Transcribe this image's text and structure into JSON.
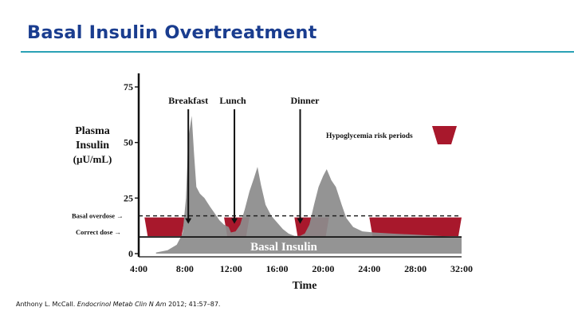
{
  "slide": {
    "title": "Basal Insulin Overtreatment",
    "citation_author": "Anthony L. McCall.",
    "citation_journal": "Endocrinol Metab Clin N Am",
    "citation_rest": "2012; 41:57–87."
  },
  "chart_data": {
    "type": "area",
    "ylabel_lines": [
      "Plasma",
      "Insulin",
      "(µU/mL)"
    ],
    "xlabel": "Time",
    "x_unit": "hours",
    "x_ticks": [
      {
        "value": 4,
        "label": "4:00"
      },
      {
        "value": 8,
        "label": "8:00"
      },
      {
        "value": 12,
        "label": "12:00"
      },
      {
        "value": 16,
        "label": "16:00"
      },
      {
        "value": 20,
        "label": "20:00"
      },
      {
        "value": 24,
        "label": "24:00"
      },
      {
        "value": 28,
        "label": "28:00"
      },
      {
        "value": 32,
        "label": "32:00"
      }
    ],
    "y_ticks": [
      0,
      25,
      50,
      75
    ],
    "xlim": [
      4,
      32
    ],
    "ylim": [
      0,
      75
    ],
    "meals": [
      {
        "label": "Breakfast",
        "x": 8.3
      },
      {
        "label": "Lunch",
        "x": 12.3
      },
      {
        "label": "Dinner",
        "x": 18.0
      }
    ],
    "insulin_profile": [
      {
        "x": 5.5,
        "y": 0.5
      },
      {
        "x": 6.5,
        "y": 1.5
      },
      {
        "x": 7.3,
        "y": 4
      },
      {
        "x": 7.8,
        "y": 9
      },
      {
        "x": 8.1,
        "y": 25
      },
      {
        "x": 8.3,
        "y": 52
      },
      {
        "x": 8.6,
        "y": 62
      },
      {
        "x": 8.8,
        "y": 45
      },
      {
        "x": 9.0,
        "y": 30
      },
      {
        "x": 9.3,
        "y": 27
      },
      {
        "x": 9.7,
        "y": 25
      },
      {
        "x": 10.2,
        "y": 21
      },
      {
        "x": 10.6,
        "y": 18
      },
      {
        "x": 11.0,
        "y": 15
      },
      {
        "x": 11.4,
        "y": 13
      },
      {
        "x": 11.8,
        "y": 12
      },
      {
        "x": 12.0,
        "y": 9.5
      },
      {
        "x": 12.4,
        "y": 10
      },
      {
        "x": 12.8,
        "y": 13
      },
      {
        "x": 13.2,
        "y": 20
      },
      {
        "x": 13.6,
        "y": 28
      },
      {
        "x": 14.0,
        "y": 34
      },
      {
        "x": 14.3,
        "y": 39
      },
      {
        "x": 14.6,
        "y": 31
      },
      {
        "x": 15.0,
        "y": 22
      },
      {
        "x": 15.5,
        "y": 17
      },
      {
        "x": 16.0,
        "y": 14
      },
      {
        "x": 16.5,
        "y": 11
      },
      {
        "x": 17.0,
        "y": 9
      },
      {
        "x": 17.5,
        "y": 8
      },
      {
        "x": 18.0,
        "y": 8
      },
      {
        "x": 18.4,
        "y": 9
      },
      {
        "x": 18.8,
        "y": 13
      },
      {
        "x": 19.2,
        "y": 22
      },
      {
        "x": 19.6,
        "y": 30
      },
      {
        "x": 20.0,
        "y": 35
      },
      {
        "x": 20.3,
        "y": 38
      },
      {
        "x": 20.7,
        "y": 33
      },
      {
        "x": 21.1,
        "y": 30
      },
      {
        "x": 21.6,
        "y": 22
      },
      {
        "x": 22.0,
        "y": 16
      },
      {
        "x": 22.6,
        "y": 12
      },
      {
        "x": 23.4,
        "y": 10
      },
      {
        "x": 24.4,
        "y": 9.5
      },
      {
        "x": 26.0,
        "y": 9
      },
      {
        "x": 28.0,
        "y": 8.5
      },
      {
        "x": 30.0,
        "y": 8
      },
      {
        "x": 32.0,
        "y": 7.5
      }
    ],
    "basal_insulin_label": "Basal Insulin",
    "basal_overdose": {
      "label": "Basal overdose",
      "y": 17
    },
    "correct_dose": {
      "label": "Correct dose",
      "y": 7.5
    },
    "hypoglycemia_periods": [
      {
        "x0": 4.5,
        "x1": 8.0
      },
      {
        "x0": 11.4,
        "x1": 13.6
      },
      {
        "x0": 17.5,
        "x1": 20.5
      },
      {
        "x0": 24.0,
        "x1": 32.0
      }
    ],
    "legend": {
      "label": "Hypoglycemia risk periods",
      "position": "top-right"
    },
    "colors": {
      "insulin_fill": "#8c8c8c",
      "risk_fill": "#a8182c",
      "axis": "#111111",
      "title": "#1a3d8f",
      "rule": "#2aa1b5"
    }
  }
}
